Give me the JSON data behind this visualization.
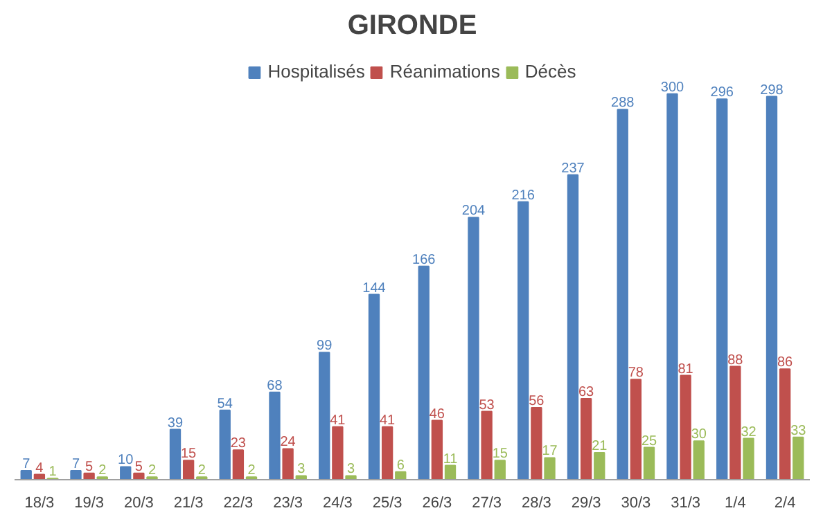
{
  "chart_data": {
    "type": "bar",
    "title": "GIRONDE",
    "categories": [
      "18/3",
      "19/3",
      "20/3",
      "21/3",
      "22/3",
      "23/3",
      "24/3",
      "25/3",
      "26/3",
      "27/3",
      "28/3",
      "29/3",
      "30/3",
      "31/3",
      "1/4",
      "2/4"
    ],
    "series": [
      {
        "name": "Hospitalisés",
        "color": "#4f81bd",
        "values": [
          7,
          7,
          10,
          39,
          54,
          68,
          99,
          144,
          166,
          204,
          216,
          237,
          288,
          300,
          296,
          298
        ]
      },
      {
        "name": "Réanimations",
        "color": "#c0504d",
        "values": [
          4,
          5,
          5,
          15,
          23,
          24,
          41,
          41,
          46,
          53,
          56,
          63,
          78,
          81,
          88,
          86
        ]
      },
      {
        "name": "Décès",
        "color": "#9bbb59",
        "values": [
          1,
          2,
          2,
          2,
          2,
          3,
          3,
          6,
          11,
          15,
          17,
          21,
          25,
          30,
          32,
          33
        ]
      }
    ],
    "data_labels": true,
    "legend": "top",
    "grid": false
  }
}
